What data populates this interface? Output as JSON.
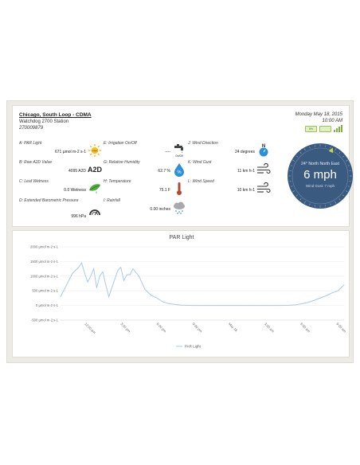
{
  "station": {
    "name": "Chicago, South Loop - CDMA",
    "subtitle": "Watchdog 2700 Station",
    "id": "270009879",
    "date": "Monday May 18, 2015",
    "time": "10:00 AM",
    "battery_label": "5%"
  },
  "sensors": [
    {
      "label": "A: PAR Light",
      "value": "671 µmol m-2 s-1",
      "icon": "sun-icon"
    },
    {
      "label": "B: Raw A2D Value",
      "value": "4095 A2D",
      "icon": "a2d-icon",
      "icon_text": "A2D"
    },
    {
      "label": "C: Leaf Wetness",
      "value": "0.0 Wetness",
      "icon": "leaf-icon"
    },
    {
      "label": "D: Extended Barometric Pressure",
      "value": "996 hPa",
      "icon": "gauge-icon"
    },
    {
      "label": "E: Irrigation On/Off",
      "value": "----",
      "icon": "faucet-icon",
      "icon_text": "On/Off"
    },
    {
      "label": "G: Relative Humidity",
      "value": "62.7 %",
      "icon": "humidity-drop-icon",
      "icon_text": "%"
    },
    {
      "label": "H: Temperature",
      "value": "75.1 F",
      "icon": "thermometer-icon"
    },
    {
      "label": "I: Rainfall",
      "value": "0.00 inches",
      "icon": "rain-cloud-icon"
    },
    {
      "label": "J: Wind Direction",
      "value": "24 degrees",
      "icon": "north-compass-icon",
      "icon_text": "N"
    },
    {
      "label": "K: Wind Gust",
      "value": "11 km h-1",
      "icon": "wind-icon"
    },
    {
      "label": "L: Wind Speed",
      "value": "10 km h-1",
      "icon": "wind-icon"
    }
  ],
  "compass": {
    "direction_text": "24° North North East",
    "speed_text": "6 mph",
    "gust_text": "Wind Gust: 7 mph",
    "direction_degrees": 24,
    "ring_color": "#3b5a80",
    "marker_color": "#c8d64a"
  },
  "chart_data": {
    "type": "line",
    "title": "PAR Light",
    "y_ticks": [
      "2000 µmol m-2 s-1",
      "1500 µmol m-2 s-1",
      "1000 µmol m-2 s-1",
      "500 µmol m-2 s-1",
      "0 µmol m-2 s-1",
      "-500 µmol m-2 s-1"
    ],
    "y_tick_values": [
      2000,
      1500,
      1000,
      500,
      0,
      -500
    ],
    "ylim": [
      -500,
      2000
    ],
    "x_ticks": [
      "12:00 pm",
      "3:00 pm",
      "6:00 pm",
      "9:00 pm",
      "May 18",
      "3:00 am",
      "6:00 am",
      "9:00 am"
    ],
    "xlim": [
      0,
      23.5
    ],
    "line_color": "#a9c8e8",
    "series": [
      {
        "name": "PAR Light",
        "x": [
          0,
          0.25,
          0.5,
          0.75,
          1,
          1.25,
          1.5,
          1.75,
          2,
          2.25,
          2.5,
          2.75,
          3,
          3.25,
          3.5,
          3.75,
          4,
          4.25,
          4.5,
          4.75,
          5,
          5.25,
          5.5,
          5.75,
          6,
          6.5,
          7,
          7.5,
          8,
          8.5,
          9,
          10,
          11,
          12,
          13,
          14,
          15,
          16,
          17,
          18,
          19,
          19.5,
          20,
          20.5,
          21,
          21.5,
          22,
          22.5,
          23,
          23.5
        ],
        "y": [
          300,
          500,
          700,
          900,
          1100,
          1200,
          1300,
          1450,
          1100,
          800,
          1000,
          1250,
          600,
          1000,
          1150,
          700,
          300,
          600,
          900,
          1200,
          1300,
          850,
          1050,
          1050,
          1250,
          1000,
          550,
          350,
          250,
          120,
          60,
          10,
          0,
          0,
          0,
          0,
          0,
          0,
          0,
          0,
          5,
          20,
          60,
          100,
          170,
          250,
          330,
          430,
          500,
          700
        ]
      }
    ],
    "legend": "bottom-center"
  }
}
